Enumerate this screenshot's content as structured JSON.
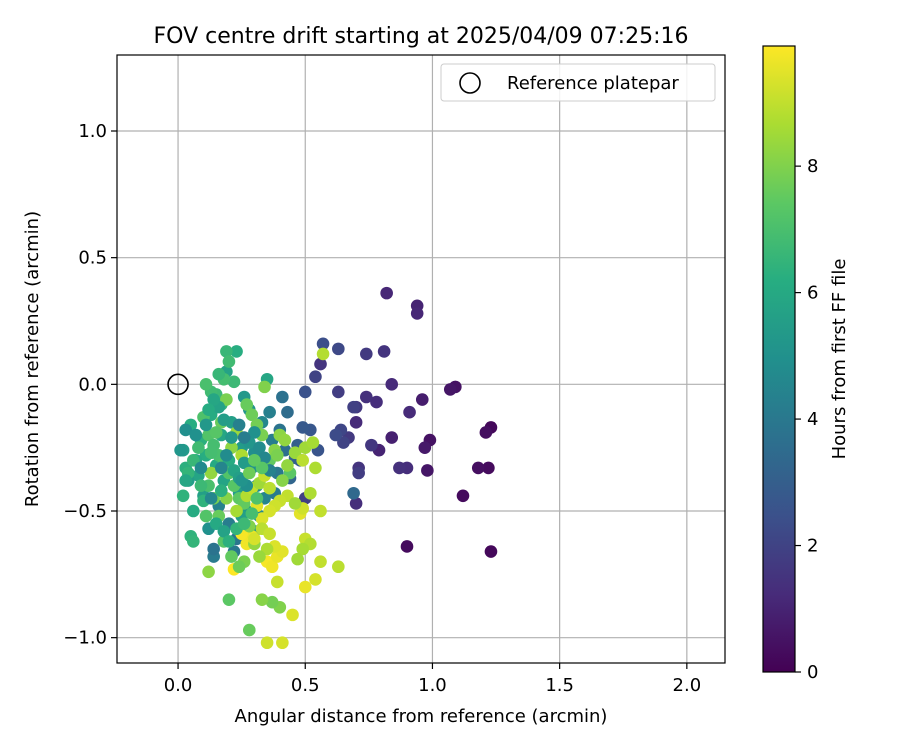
{
  "chart_data": {
    "type": "scatter",
    "title": "FOV centre drift starting at 2025/04/09 07:25:16",
    "xlabel": "Angular distance from reference (arcmin)",
    "ylabel": "Rotation from reference (arcmin)",
    "xlim": [
      -0.24,
      2.15
    ],
    "ylim": [
      -1.1,
      1.3
    ],
    "xticks": [
      0.0,
      0.5,
      1.0,
      1.5,
      2.0
    ],
    "xtick_labels": [
      "0.0",
      "0.5",
      "1.0",
      "1.5",
      "2.0"
    ],
    "yticks": [
      -1.0,
      -0.5,
      0.0,
      0.5,
      1.0
    ],
    "ytick_labels": [
      "−1.0",
      "−0.5",
      "0.0",
      "0.5",
      "1.0"
    ],
    "grid": true,
    "legend": {
      "position": "top-right",
      "entries": [
        "Reference platepar"
      ]
    },
    "reference_point": {
      "x": 0.0,
      "y": 0.0,
      "label": "Reference platepar"
    },
    "colorbar": {
      "label": "Hours from first FF file",
      "min": 0,
      "max": 9.9,
      "ticks": [
        0,
        2,
        4,
        6,
        8
      ],
      "tick_labels": [
        "0",
        "2",
        "4",
        "6",
        "8"
      ],
      "colormap": "viridis"
    },
    "points": [
      {
        "x": 1.23,
        "y": -0.66,
        "c": 0.2
      },
      {
        "x": 0.9,
        "y": -0.64,
        "c": 0.3
      },
      {
        "x": 1.12,
        "y": -0.44,
        "c": 0.3
      },
      {
        "x": 1.23,
        "y": -0.17,
        "c": 0.2
      },
      {
        "x": 1.21,
        "y": -0.19,
        "c": 0.4
      },
      {
        "x": 1.22,
        "y": -0.33,
        "c": 0.3
      },
      {
        "x": 1.18,
        "y": -0.33,
        "c": 0.4
      },
      {
        "x": 1.09,
        "y": -0.01,
        "c": 0.5
      },
      {
        "x": 1.07,
        "y": -0.02,
        "c": 0.6
      },
      {
        "x": 0.99,
        "y": -0.22,
        "c": 0.5
      },
      {
        "x": 0.98,
        "y": -0.34,
        "c": 0.6
      },
      {
        "x": 0.97,
        "y": -0.25,
        "c": 0.7
      },
      {
        "x": 0.96,
        "y": -0.06,
        "c": 0.8
      },
      {
        "x": 0.94,
        "y": 0.31,
        "c": 1.0
      },
      {
        "x": 0.94,
        "y": 0.28,
        "c": 1.1
      },
      {
        "x": 0.91,
        "y": -0.11,
        "c": 1.2
      },
      {
        "x": 0.9,
        "y": -0.33,
        "c": 1.3
      },
      {
        "x": 0.87,
        "y": -0.33,
        "c": 1.4
      },
      {
        "x": 0.84,
        "y": -0.21,
        "c": 0.9
      },
      {
        "x": 0.84,
        "y": 0.0,
        "c": 1.2
      },
      {
        "x": 0.82,
        "y": 0.36,
        "c": 1.1
      },
      {
        "x": 0.81,
        "y": 0.13,
        "c": 1.5
      },
      {
        "x": 0.79,
        "y": -0.26,
        "c": 1.0
      },
      {
        "x": 0.78,
        "y": -0.07,
        "c": 1.3
      },
      {
        "x": 0.76,
        "y": -0.24,
        "c": 1.6
      },
      {
        "x": 0.74,
        "y": -0.05,
        "c": 1.4
      },
      {
        "x": 0.74,
        "y": 0.12,
        "c": 1.7
      },
      {
        "x": 0.71,
        "y": -0.33,
        "c": 1.5
      },
      {
        "x": 0.71,
        "y": -0.35,
        "c": 1.8
      },
      {
        "x": 0.7,
        "y": -0.09,
        "c": 1.6
      },
      {
        "x": 0.7,
        "y": -0.15,
        "c": 1.2
      },
      {
        "x": 0.69,
        "y": -0.09,
        "c": 1.9
      },
      {
        "x": 0.7,
        "y": -0.47,
        "c": 1.3
      },
      {
        "x": 0.69,
        "y": -0.43,
        "c": 3.4
      },
      {
        "x": 0.67,
        "y": -0.21,
        "c": 1.7
      },
      {
        "x": 0.65,
        "y": -0.23,
        "c": 2.0
      },
      {
        "x": 0.64,
        "y": -0.18,
        "c": 2.1
      },
      {
        "x": 0.63,
        "y": -0.03,
        "c": 1.8
      },
      {
        "x": 0.63,
        "y": 0.14,
        "c": 2.2
      },
      {
        "x": 0.62,
        "y": -0.2,
        "c": 2.3
      },
      {
        "x": 0.57,
        "y": 0.16,
        "c": 2.4
      },
      {
        "x": 0.56,
        "y": 0.08,
        "c": 1.5
      },
      {
        "x": 0.54,
        "y": 0.03,
        "c": 2.0
      },
      {
        "x": 0.5,
        "y": -0.03,
        "c": 2.5
      },
      {
        "x": 0.55,
        "y": -0.26,
        "c": 2.6
      },
      {
        "x": 0.52,
        "y": -0.18,
        "c": 2.7
      },
      {
        "x": 0.5,
        "y": -0.45,
        "c": 1.9
      },
      {
        "x": 0.49,
        "y": -0.17,
        "c": 2.8
      },
      {
        "x": 0.48,
        "y": -0.3,
        "c": 2.9
      },
      {
        "x": 0.47,
        "y": -0.24,
        "c": 3.0
      },
      {
        "x": 0.46,
        "y": -0.29,
        "c": 3.1
      },
      {
        "x": 0.44,
        "y": -0.37,
        "c": 3.3
      },
      {
        "x": 0.43,
        "y": -0.11,
        "c": 3.5
      },
      {
        "x": 0.42,
        "y": -0.26,
        "c": 3.6
      },
      {
        "x": 0.41,
        "y": -0.05,
        "c": 3.7
      },
      {
        "x": 0.4,
        "y": -0.18,
        "c": 3.8
      },
      {
        "x": 0.39,
        "y": -0.35,
        "c": 4.0
      },
      {
        "x": 0.38,
        "y": -0.43,
        "c": 4.1
      },
      {
        "x": 0.37,
        "y": -0.22,
        "c": 4.2
      },
      {
        "x": 0.36,
        "y": -0.11,
        "c": 4.3
      },
      {
        "x": 0.35,
        "y": -0.3,
        "c": 4.4
      },
      {
        "x": 0.34,
        "y": -0.45,
        "c": 4.5
      },
      {
        "x": 0.33,
        "y": -0.15,
        "c": 4.6
      },
      {
        "x": 0.32,
        "y": -0.52,
        "c": 4.7
      },
      {
        "x": 0.31,
        "y": -0.4,
        "c": 4.8
      },
      {
        "x": 0.3,
        "y": -0.27,
        "c": 4.9
      },
      {
        "x": 0.29,
        "y": -0.33,
        "c": 5.0
      },
      {
        "x": 0.28,
        "y": -0.1,
        "c": 5.1
      },
      {
        "x": 0.27,
        "y": -0.5,
        "c": 5.2
      },
      {
        "x": 0.26,
        "y": -0.05,
        "c": 5.3
      },
      {
        "x": 0.25,
        "y": -0.25,
        "c": 5.4
      },
      {
        "x": 0.24,
        "y": -0.43,
        "c": 5.5
      },
      {
        "x": 0.23,
        "y": -0.61,
        "c": 3.9
      },
      {
        "x": 0.22,
        "y": -0.66,
        "c": 4.0
      },
      {
        "x": 0.21,
        "y": -0.15,
        "c": 5.6
      },
      {
        "x": 0.2,
        "y": -0.55,
        "c": 4.2
      },
      {
        "x": 0.19,
        "y": 0.05,
        "c": 5.7
      },
      {
        "x": 0.18,
        "y": -0.38,
        "c": 5.8
      },
      {
        "x": 0.17,
        "y": -0.2,
        "c": 5.9
      },
      {
        "x": 0.16,
        "y": -0.48,
        "c": 4.4
      },
      {
        "x": 0.15,
        "y": -0.32,
        "c": 6.0
      },
      {
        "x": 0.14,
        "y": -0.68,
        "c": 4.1
      },
      {
        "x": 0.14,
        "y": -0.65,
        "c": 3.8
      },
      {
        "x": 0.13,
        "y": -0.12,
        "c": 6.1
      },
      {
        "x": 0.12,
        "y": -0.57,
        "c": 5.0
      },
      {
        "x": 0.11,
        "y": -0.28,
        "c": 6.2
      },
      {
        "x": 0.1,
        "y": -0.44,
        "c": 5.6
      },
      {
        "x": 0.09,
        "y": -0.22,
        "c": 6.3
      },
      {
        "x": 0.08,
        "y": -0.36,
        "c": 5.8
      },
      {
        "x": 0.07,
        "y": -0.3,
        "c": 6.0
      },
      {
        "x": 0.06,
        "y": -0.5,
        "c": 6.1
      },
      {
        "x": 0.05,
        "y": -0.16,
        "c": 6.2
      },
      {
        "x": 0.04,
        "y": -0.38,
        "c": 5.5
      },
      {
        "x": 0.03,
        "y": -0.33,
        "c": 6.3
      },
      {
        "x": 0.02,
        "y": -0.26,
        "c": 5.4
      },
      {
        "x": 0.02,
        "y": -0.44,
        "c": 6.4
      },
      {
        "x": 0.05,
        "y": -0.6,
        "c": 6.4
      },
      {
        "x": 0.06,
        "y": -0.62,
        "c": 6.5
      },
      {
        "x": 0.3,
        "y": -0.58,
        "c": 5.3
      },
      {
        "x": 0.25,
        "y": -0.52,
        "c": 5.6
      },
      {
        "x": 0.35,
        "y": 0.02,
        "c": 5.9
      },
      {
        "x": 0.23,
        "y": 0.13,
        "c": 6.2
      },
      {
        "x": 0.19,
        "y": 0.13,
        "c": 6.6
      },
      {
        "x": 0.2,
        "y": 0.09,
        "c": 6.8
      },
      {
        "x": 0.22,
        "y": 0.01,
        "c": 6.7
      },
      {
        "x": 0.18,
        "y": 0.02,
        "c": 6.9
      },
      {
        "x": 0.17,
        "y": -0.08,
        "c": 6.5
      },
      {
        "x": 0.16,
        "y": 0.04,
        "c": 6.6
      },
      {
        "x": 0.15,
        "y": -0.04,
        "c": 6.7
      },
      {
        "x": 0.13,
        "y": -0.03,
        "c": 6.8
      },
      {
        "x": 0.11,
        "y": 0.0,
        "c": 7.0
      },
      {
        "x": 0.1,
        "y": -0.13,
        "c": 7.1
      },
      {
        "x": 0.12,
        "y": -0.2,
        "c": 7.2
      },
      {
        "x": 0.14,
        "y": -0.24,
        "c": 6.9
      },
      {
        "x": 0.16,
        "y": -0.28,
        "c": 7.0
      },
      {
        "x": 0.18,
        "y": -0.31,
        "c": 7.1
      },
      {
        "x": 0.2,
        "y": -0.35,
        "c": 7.2
      },
      {
        "x": 0.22,
        "y": -0.4,
        "c": 7.3
      },
      {
        "x": 0.24,
        "y": -0.45,
        "c": 7.4
      },
      {
        "x": 0.26,
        "y": -0.47,
        "c": 7.5
      },
      {
        "x": 0.27,
        "y": -0.08,
        "c": 7.6
      },
      {
        "x": 0.29,
        "y": -0.12,
        "c": 7.7
      },
      {
        "x": 0.31,
        "y": -0.16,
        "c": 7.8
      },
      {
        "x": 0.33,
        "y": -0.2,
        "c": 7.9
      },
      {
        "x": 0.34,
        "y": -0.01,
        "c": 8.0
      },
      {
        "x": 0.36,
        "y": -0.3,
        "c": 7.5
      },
      {
        "x": 0.38,
        "y": -0.26,
        "c": 8.1
      },
      {
        "x": 0.4,
        "y": -0.2,
        "c": 8.2
      },
      {
        "x": 0.42,
        "y": -0.22,
        "c": 8.3
      },
      {
        "x": 0.44,
        "y": -0.35,
        "c": 7.4
      },
      {
        "x": 0.46,
        "y": -0.27,
        "c": 8.4
      },
      {
        "x": 0.5,
        "y": -0.25,
        "c": 8.5
      },
      {
        "x": 0.53,
        "y": -0.23,
        "c": 8.6
      },
      {
        "x": 0.54,
        "y": -0.33,
        "c": 8.7
      },
      {
        "x": 0.57,
        "y": 0.12,
        "c": 8.8
      },
      {
        "x": 0.49,
        "y": -0.3,
        "c": 8.9
      },
      {
        "x": 0.43,
        "y": -0.44,
        "c": 9.0
      },
      {
        "x": 0.4,
        "y": -0.46,
        "c": 9.1
      },
      {
        "x": 0.38,
        "y": -0.48,
        "c": 9.2
      },
      {
        "x": 0.36,
        "y": -0.5,
        "c": 9.3
      },
      {
        "x": 0.33,
        "y": -0.53,
        "c": 9.4
      },
      {
        "x": 0.31,
        "y": -0.48,
        "c": 9.5
      },
      {
        "x": 0.29,
        "y": -0.6,
        "c": 9.6
      },
      {
        "x": 0.27,
        "y": -0.63,
        "c": 9.7
      },
      {
        "x": 0.25,
        "y": -0.59,
        "c": 9.8
      },
      {
        "x": 0.22,
        "y": -0.73,
        "c": 9.9
      },
      {
        "x": 0.35,
        "y": -0.7,
        "c": 9.8
      },
      {
        "x": 0.37,
        "y": -0.72,
        "c": 9.7
      },
      {
        "x": 0.39,
        "y": -0.68,
        "c": 9.6
      },
      {
        "x": 0.41,
        "y": -0.66,
        "c": 9.5
      },
      {
        "x": 0.45,
        "y": -0.91,
        "c": 9.4
      },
      {
        "x": 0.41,
        "y": -1.02,
        "c": 9.3
      },
      {
        "x": 0.35,
        "y": -1.02,
        "c": 9.2
      },
      {
        "x": 0.4,
        "y": -0.88,
        "c": 8.0
      },
      {
        "x": 0.37,
        "y": -0.86,
        "c": 7.8
      },
      {
        "x": 0.33,
        "y": -0.85,
        "c": 8.1
      },
      {
        "x": 0.28,
        "y": -0.97,
        "c": 7.6
      },
      {
        "x": 0.2,
        "y": -0.85,
        "c": 7.4
      },
      {
        "x": 0.12,
        "y": -0.74,
        "c": 8.2
      },
      {
        "x": 0.48,
        "y": -0.51,
        "c": 9.5
      },
      {
        "x": 0.49,
        "y": -0.49,
        "c": 9.2
      },
      {
        "x": 0.56,
        "y": -0.5,
        "c": 9.0
      },
      {
        "x": 0.5,
        "y": -0.61,
        "c": 9.1
      },
      {
        "x": 0.52,
        "y": -0.63,
        "c": 8.8
      },
      {
        "x": 0.49,
        "y": -0.65,
        "c": 8.6
      },
      {
        "x": 0.47,
        "y": -0.69,
        "c": 8.5
      },
      {
        "x": 0.56,
        "y": -0.7,
        "c": 9.0
      },
      {
        "x": 0.63,
        "y": -0.72,
        "c": 8.9
      },
      {
        "x": 0.54,
        "y": -0.77,
        "c": 9.3
      },
      {
        "x": 0.5,
        "y": -0.8,
        "c": 9.6
      },
      {
        "x": 0.39,
        "y": -0.78,
        "c": 9.1
      },
      {
        "x": 0.38,
        "y": -0.64,
        "c": 9.4
      },
      {
        "x": 0.35,
        "y": -0.65,
        "c": 8.7
      },
      {
        "x": 0.32,
        "y": -0.68,
        "c": 8.4
      },
      {
        "x": 0.3,
        "y": -0.63,
        "c": 8.3
      },
      {
        "x": 0.28,
        "y": -0.56,
        "c": 8.0
      },
      {
        "x": 0.26,
        "y": -0.7,
        "c": 7.9
      },
      {
        "x": 0.24,
        "y": -0.72,
        "c": 7.7
      },
      {
        "x": 0.21,
        "y": -0.68,
        "c": 7.5
      },
      {
        "x": 0.18,
        "y": -0.62,
        "c": 7.3
      },
      {
        "x": 0.16,
        "y": -0.52,
        "c": 7.6
      },
      {
        "x": 0.14,
        "y": -0.45,
        "c": 7.8
      },
      {
        "x": 0.12,
        "y": -0.4,
        "c": 7.0
      },
      {
        "x": 0.11,
        "y": -0.52,
        "c": 7.2
      },
      {
        "x": 0.13,
        "y": -0.35,
        "c": 8.3
      },
      {
        "x": 0.19,
        "y": -0.45,
        "c": 8.1
      },
      {
        "x": 0.23,
        "y": -0.5,
        "c": 8.6
      },
      {
        "x": 0.27,
        "y": -0.44,
        "c": 8.8
      },
      {
        "x": 0.29,
        "y": -0.41,
        "c": 9.0
      },
      {
        "x": 0.32,
        "y": -0.39,
        "c": 8.5
      },
      {
        "x": 0.34,
        "y": -0.36,
        "c": 9.1
      },
      {
        "x": 0.36,
        "y": -0.41,
        "c": 8.9
      },
      {
        "x": 0.25,
        "y": -0.28,
        "c": 8.7
      },
      {
        "x": 0.23,
        "y": -0.19,
        "c": 8.4
      },
      {
        "x": 0.21,
        "y": -0.25,
        "c": 8.2
      },
      {
        "x": 0.19,
        "y": -0.06,
        "c": 7.9
      },
      {
        "x": 0.17,
        "y": -0.15,
        "c": 7.6
      },
      {
        "x": 0.15,
        "y": -0.19,
        "c": 7.3
      },
      {
        "x": 0.13,
        "y": -0.27,
        "c": 6.9
      },
      {
        "x": 0.08,
        "y": -0.25,
        "c": 6.8
      },
      {
        "x": 0.06,
        "y": -0.3,
        "c": 6.6
      },
      {
        "x": 0.04,
        "y": -0.35,
        "c": 6.5
      },
      {
        "x": 0.03,
        "y": -0.38,
        "c": 5.9
      },
      {
        "x": 0.09,
        "y": -0.4,
        "c": 6.7
      },
      {
        "x": 0.1,
        "y": -0.46,
        "c": 6.4
      },
      {
        "x": 0.17,
        "y": -0.42,
        "c": 6.3
      },
      {
        "x": 0.2,
        "y": -0.3,
        "c": 6.1
      },
      {
        "x": 0.22,
        "y": -0.34,
        "c": 5.8
      },
      {
        "x": 0.24,
        "y": -0.37,
        "c": 5.6
      },
      {
        "x": 0.26,
        "y": -0.31,
        "c": 5.4
      },
      {
        "x": 0.28,
        "y": -0.23,
        "c": 5.2
      },
      {
        "x": 0.3,
        "y": -0.19,
        "c": 5.0
      },
      {
        "x": 0.32,
        "y": -0.25,
        "c": 4.8
      },
      {
        "x": 0.34,
        "y": -0.29,
        "c": 4.6
      },
      {
        "x": 0.36,
        "y": -0.34,
        "c": 4.4
      },
      {
        "x": 0.27,
        "y": -0.4,
        "c": 4.9
      },
      {
        "x": 0.25,
        "y": -0.38,
        "c": 5.1
      },
      {
        "x": 0.21,
        "y": -0.21,
        "c": 5.3
      },
      {
        "x": 0.18,
        "y": -0.14,
        "c": 5.5
      },
      {
        "x": 0.16,
        "y": -0.09,
        "c": 5.7
      },
      {
        "x": 0.14,
        "y": -0.06,
        "c": 5.9
      },
      {
        "x": 0.12,
        "y": -0.1,
        "c": 6.1
      },
      {
        "x": 0.15,
        "y": -0.55,
        "c": 6.0
      },
      {
        "x": 0.18,
        "y": -0.58,
        "c": 5.7
      },
      {
        "x": 0.2,
        "y": -0.62,
        "c": 6.3
      },
      {
        "x": 0.23,
        "y": -0.57,
        "c": 6.5
      },
      {
        "x": 0.26,
        "y": -0.55,
        "c": 6.7
      },
      {
        "x": 0.29,
        "y": -0.51,
        "c": 6.9
      },
      {
        "x": 0.31,
        "y": -0.45,
        "c": 7.1
      },
      {
        "x": 0.33,
        "y": -0.33,
        "c": 7.3
      },
      {
        "x": 0.3,
        "y": -0.3,
        "c": 7.5
      },
      {
        "x": 0.28,
        "y": -0.35,
        "c": 7.7
      },
      {
        "x": 0.39,
        "y": -0.28,
        "c": 7.9
      },
      {
        "x": 0.41,
        "y": -0.38,
        "c": 8.1
      },
      {
        "x": 0.43,
        "y": -0.32,
        "c": 8.3
      },
      {
        "x": 0.46,
        "y": -0.47,
        "c": 8.5
      },
      {
        "x": 0.52,
        "y": -0.43,
        "c": 8.7
      },
      {
        "x": 0.33,
        "y": -0.57,
        "c": 8.9
      },
      {
        "x": 0.36,
        "y": -0.59,
        "c": 9.1
      },
      {
        "x": 0.3,
        "y": -0.61,
        "c": 9.3
      },
      {
        "x": 0.01,
        "y": -0.26,
        "c": 5.2
      },
      {
        "x": 0.03,
        "y": -0.18,
        "c": 4.9
      },
      {
        "x": 0.07,
        "y": -0.2,
        "c": 5.0
      },
      {
        "x": 0.09,
        "y": -0.33,
        "c": 4.7
      },
      {
        "x": 0.11,
        "y": -0.16,
        "c": 5.3
      },
      {
        "x": 0.13,
        "y": -0.45,
        "c": 4.6
      },
      {
        "x": 0.17,
        "y": -0.33,
        "c": 4.5
      },
      {
        "x": 0.19,
        "y": -0.28,
        "c": 4.8
      },
      {
        "x": 0.24,
        "y": -0.16,
        "c": 4.3
      },
      {
        "x": 0.26,
        "y": -0.21,
        "c": 4.2
      }
    ]
  }
}
